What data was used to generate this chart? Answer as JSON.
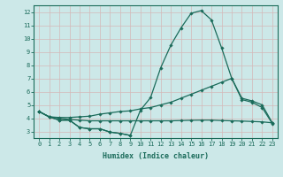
{
  "line1_x": [
    0,
    1,
    2,
    3,
    4,
    5,
    6,
    7,
    8,
    9,
    10,
    11,
    12,
    13,
    14,
    15,
    16,
    17,
    18,
    19,
    20,
    21,
    22,
    23
  ],
  "line1_y": [
    4.5,
    4.1,
    3.85,
    3.85,
    3.3,
    3.2,
    3.2,
    2.95,
    2.85,
    2.7,
    null,
    null,
    null,
    null,
    null,
    null,
    null,
    null,
    null,
    null,
    null,
    null,
    null,
    null
  ],
  "line2_x": [
    0,
    1,
    2,
    3,
    4,
    5,
    6,
    7,
    8,
    9,
    10,
    11,
    12,
    13,
    14,
    15,
    16,
    17,
    18,
    19,
    20,
    21,
    22,
    23
  ],
  "line2_y": [
    4.5,
    4.1,
    4.05,
    4.05,
    4.1,
    4.15,
    4.3,
    4.4,
    4.5,
    4.55,
    4.7,
    4.8,
    5.0,
    5.2,
    5.5,
    5.8,
    6.1,
    6.4,
    6.7,
    7.0,
    5.5,
    5.3,
    5.0,
    3.65
  ],
  "line3_x": [
    0,
    1,
    2,
    3,
    4,
    5,
    6,
    7,
    8,
    9,
    10,
    11,
    12,
    13,
    14,
    15,
    16,
    17,
    18,
    19,
    20,
    21,
    22,
    23
  ],
  "line3_y": [
    4.5,
    4.1,
    4.0,
    3.9,
    3.85,
    3.8,
    3.8,
    3.8,
    3.8,
    3.8,
    3.8,
    3.8,
    3.8,
    3.8,
    3.82,
    3.84,
    3.85,
    3.85,
    3.82,
    3.8,
    3.78,
    3.75,
    3.72,
    3.65
  ],
  "line4_x": [
    0,
    1,
    2,
    3,
    4,
    5,
    6,
    7,
    8,
    9,
    10,
    11,
    12,
    13,
    14,
    15,
    16,
    17,
    18,
    19,
    20,
    21,
    22,
    23
  ],
  "line4_y": [
    4.5,
    4.1,
    3.85,
    3.85,
    3.3,
    3.2,
    3.2,
    2.95,
    2.85,
    2.7,
    4.6,
    5.55,
    7.8,
    9.5,
    10.8,
    11.9,
    12.1,
    11.4,
    9.3,
    7.0,
    5.4,
    5.2,
    4.8,
    3.6
  ],
  "line_color": "#1a6b5a",
  "bg_color": "#cce8e8",
  "grid_color": "#b8d8d8",
  "xlabel": "Humidex (Indice chaleur)",
  "xlim": [
    -0.5,
    23.5
  ],
  "ylim": [
    2.5,
    12.5
  ],
  "yticks": [
    3,
    4,
    5,
    6,
    7,
    8,
    9,
    10,
    11,
    12
  ],
  "xticks": [
    0,
    1,
    2,
    3,
    4,
    5,
    6,
    7,
    8,
    9,
    10,
    11,
    12,
    13,
    14,
    15,
    16,
    17,
    18,
    19,
    20,
    21,
    22,
    23
  ],
  "marker": "D",
  "markersize": 1.8,
  "linewidth": 0.9,
  "tick_fontsize": 5.0,
  "xlabel_fontsize": 6.0
}
